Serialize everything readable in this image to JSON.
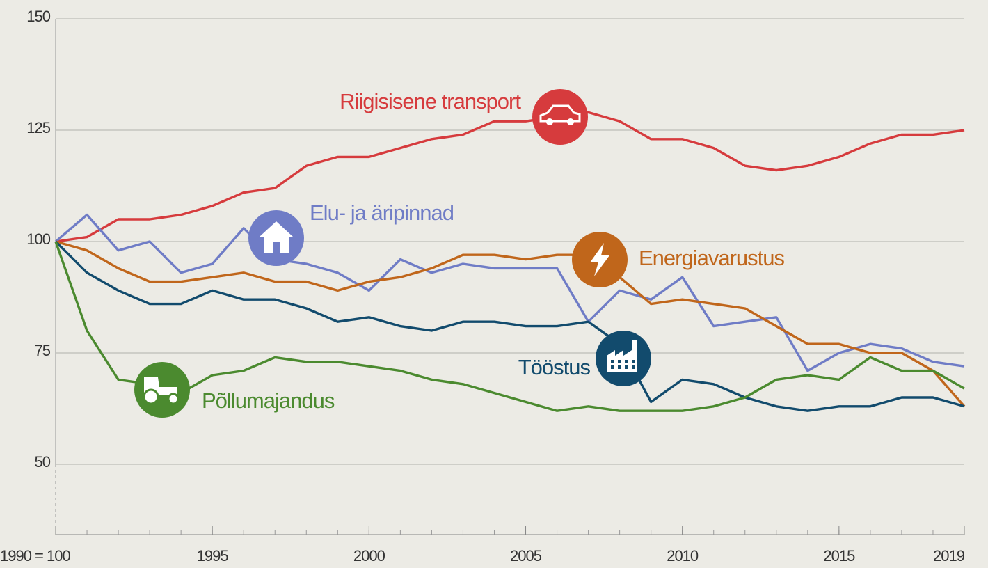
{
  "chart_data": {
    "type": "line",
    "x": [
      1990,
      1991,
      1992,
      1993,
      1994,
      1995,
      1996,
      1997,
      1998,
      1999,
      2000,
      2001,
      2002,
      2003,
      2004,
      2005,
      2006,
      2007,
      2008,
      2009,
      2010,
      2011,
      2012,
      2013,
      2014,
      2015,
      2016,
      2017,
      2018,
      2019
    ],
    "xlim": [
      1990,
      2019
    ],
    "xticks": [
      {
        "value": 1990,
        "label": "1990 = 100"
      },
      1995,
      2000,
      2005,
      2010,
      2015,
      2019
    ],
    "ylim": [
      34,
      150
    ],
    "yticks": [
      50,
      75,
      100,
      125,
      150
    ],
    "grid": true,
    "series": [
      {
        "name": "Riigisisene transport",
        "color": "#d63b3d",
        "values": [
          100,
          101,
          105,
          105,
          106,
          108,
          111,
          112,
          117,
          119,
          119,
          121,
          123,
          124,
          127,
          127,
          128,
          129,
          127,
          123,
          123,
          121,
          117,
          116,
          117,
          119,
          122,
          124,
          124,
          125
        ]
      },
      {
        "name": "Elu- ja äripinnad",
        "color": "#6f7cc6",
        "values": [
          100,
          106,
          98,
          100,
          93,
          95,
          103,
          96,
          95,
          93,
          89,
          96,
          93,
          95,
          94,
          94,
          94,
          82,
          89,
          87,
          92,
          81,
          82,
          83,
          71,
          75,
          77,
          76,
          73,
          72
        ]
      },
      {
        "name": "Energiavarustus",
        "color": "#c0661b",
        "values": [
          100,
          98,
          94,
          91,
          91,
          92,
          93,
          91,
          91,
          89,
          91,
          92,
          94,
          97,
          97,
          96,
          97,
          97,
          92,
          86,
          87,
          86,
          85,
          81,
          77,
          77,
          75,
          75,
          71,
          63
        ]
      },
      {
        "name": "Tööstus",
        "color": "#124b6d",
        "values": [
          100,
          93,
          89,
          86,
          86,
          89,
          87,
          87,
          85,
          82,
          83,
          81,
          80,
          82,
          82,
          81,
          81,
          82,
          77,
          64,
          69,
          68,
          65,
          63,
          62,
          63,
          63,
          65,
          65,
          63
        ]
      },
      {
        "name": "Põllumajandus",
        "color": "#4b8a2f",
        "values": [
          100,
          80,
          69,
          68,
          66,
          70,
          71,
          74,
          73,
          73,
          72,
          71,
          69,
          68,
          66,
          64,
          62,
          63,
          62,
          62,
          62,
          63,
          65,
          69,
          70,
          69,
          74,
          71,
          71,
          67
        ]
      }
    ]
  }
}
